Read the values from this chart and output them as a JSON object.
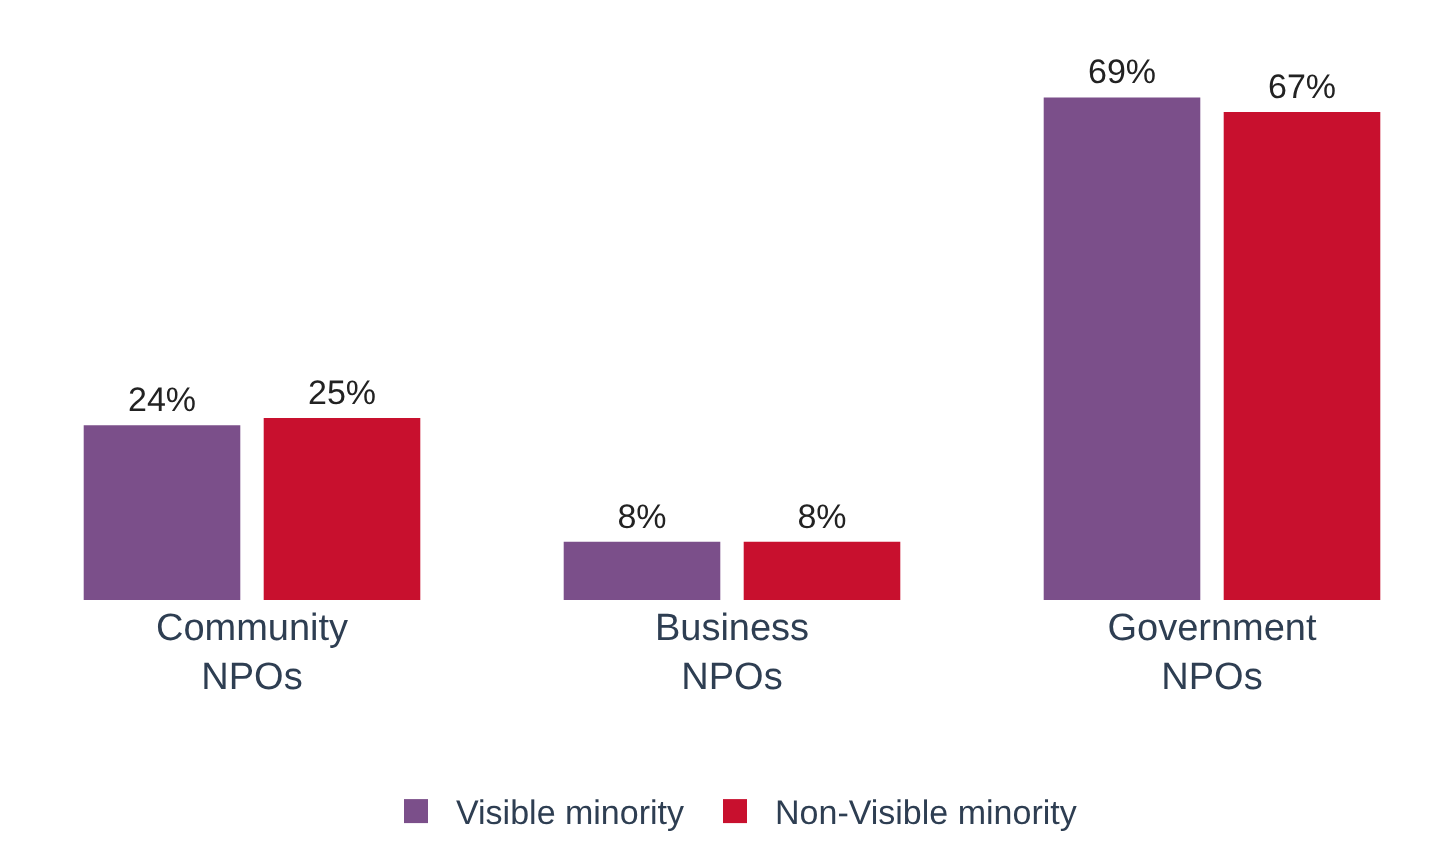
{
  "chart_data": {
    "type": "bar",
    "categories": [
      "Community NPOs",
      "Business NPOs",
      "Government NPOs"
    ],
    "series": [
      {
        "name": "Visible minority",
        "color": "#7b4f8a",
        "values": [
          24,
          8,
          69
        ],
        "value_labels": [
          "24%",
          "8%",
          "69%"
        ]
      },
      {
        "name": "Non-Visible minority",
        "color": "#c8102e",
        "values": [
          25,
          8,
          67
        ],
        "value_labels": [
          "25%",
          "8%",
          "67%"
        ]
      }
    ],
    "legend": "bottom",
    "grid": false
  }
}
